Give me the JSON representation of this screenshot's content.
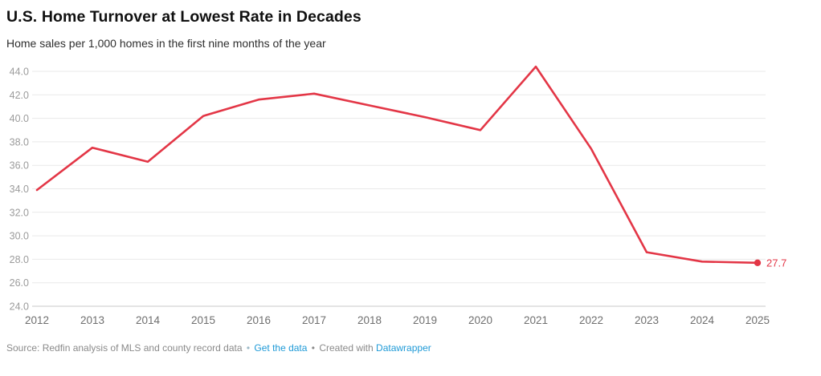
{
  "header": {
    "title": "U.S. Home Turnover at Lowest Rate in Decades",
    "subtitle": "Home sales per 1,000 homes in the first nine months of the year"
  },
  "footer": {
    "source_text": "Source: Redfin analysis of MLS and county record data",
    "separator": "•",
    "get_data_label": "Get the data",
    "created_with_text": "Created with",
    "datawrapper_label": "Datawrapper"
  },
  "colors": {
    "line": "#e33646",
    "end_label": "#e33646",
    "gridline": "#e9e9e9",
    "baseline": "#c9c9c9",
    "y_tick_label": "#9b9b9b",
    "x_tick_label": "#6f6f6f",
    "link_blue": "#1f9ad7"
  },
  "chart_data": {
    "type": "line",
    "title": "U.S. Home Turnover at Lowest Rate in Decades",
    "subtitle": "Home sales per 1,000 homes in the first nine months of the year",
    "x": [
      2012,
      2013,
      2014,
      2015,
      2016,
      2017,
      2018,
      2019,
      2020,
      2021,
      2022,
      2023,
      2024,
      2025
    ],
    "xtick_labels": [
      "2012",
      "2013",
      "2014",
      "2015",
      "2016",
      "2017",
      "2018",
      "2019",
      "2020",
      "2021",
      "2022",
      "2023",
      "2024",
      "2025"
    ],
    "series": [
      {
        "name": "Home sales per 1,000 homes",
        "values": [
          33.9,
          37.5,
          36.3,
          40.2,
          41.6,
          42.1,
          41.1,
          40.1,
          39.0,
          44.4,
          37.4,
          28.6,
          27.8,
          27.7
        ]
      }
    ],
    "end_point_label": "27.7",
    "ylim": [
      24.0,
      44.0
    ],
    "ytick_step": 2.0,
    "ytick_labels": [
      "24.0",
      "26.0",
      "28.0",
      "30.0",
      "32.0",
      "34.0",
      "36.0",
      "38.0",
      "40.0",
      "42.0",
      "44.0"
    ],
    "grid": "horizontal",
    "legend": "none",
    "xlabel": "",
    "ylabel": ""
  }
}
